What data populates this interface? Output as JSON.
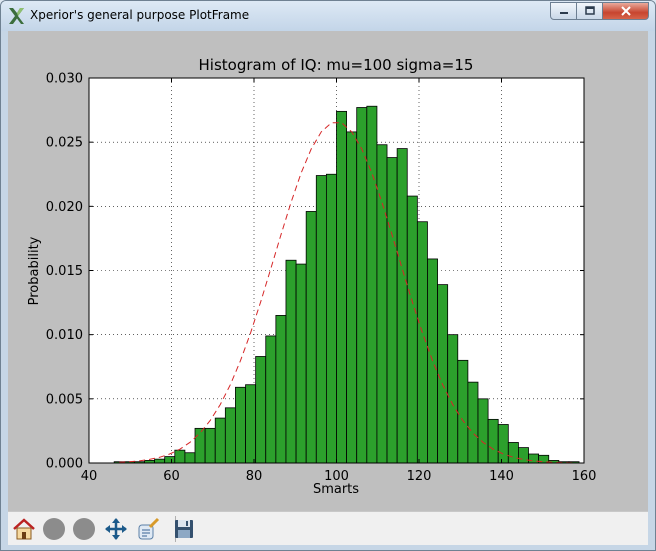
{
  "window": {
    "title": "Xperior's general purpose PlotFrame"
  },
  "toolbar": {
    "buttons": [
      {
        "name": "home",
        "icon": "home-icon"
      },
      {
        "name": "back",
        "icon": "back-circle-icon"
      },
      {
        "name": "forward",
        "icon": "forward-circle-icon"
      },
      {
        "name": "pan",
        "icon": "move-arrows-icon"
      },
      {
        "name": "configure",
        "icon": "configure-subplots-icon"
      },
      {
        "name": "save",
        "icon": "floppy-save-icon"
      }
    ]
  },
  "chart_data": {
    "type": "bar",
    "title": "Histogram of IQ: mu=100 sigma=15",
    "xlabel": "Smarts",
    "ylabel": "Probability",
    "xlim": [
      40,
      160
    ],
    "ylim": [
      0,
      0.03
    ],
    "xticks": [
      "40",
      "60",
      "80",
      "100",
      "120",
      "140",
      "160"
    ],
    "yticks": [
      "0.000",
      "0.005",
      "0.010",
      "0.015",
      "0.020",
      "0.025",
      "0.030"
    ],
    "grid": true,
    "bar_color": "#2ca02c",
    "fit_color": "#d62728",
    "bin_width": 2.45,
    "bins_left": [
      46.1,
      48.55,
      51.0,
      53.45,
      55.9,
      58.35,
      60.8,
      63.25,
      65.7,
      68.15,
      70.6,
      73.05,
      75.5,
      77.95,
      80.4,
      82.85,
      85.3,
      87.75,
      90.2,
      92.65,
      95.1,
      97.55,
      100.0,
      102.45,
      104.9,
      107.35,
      109.8,
      112.25,
      114.7,
      117.15,
      119.6,
      122.05,
      124.5,
      126.95,
      129.4,
      131.85,
      134.3,
      136.75,
      139.2,
      141.65,
      144.1,
      146.55,
      149.0,
      151.45,
      153.9,
      156.35
    ],
    "values": [
      0.0001,
      0.0001,
      0.0001,
      0.0002,
      0.0003,
      0.0005,
      0.001,
      0.0008,
      0.0027,
      0.0027,
      0.0035,
      0.0043,
      0.0059,
      0.0061,
      0.0083,
      0.0099,
      0.0115,
      0.0158,
      0.0155,
      0.0196,
      0.0224,
      0.0225,
      0.0274,
      0.0258,
      0.0277,
      0.0278,
      0.0248,
      0.0238,
      0.0245,
      0.0208,
      0.0188,
      0.0159,
      0.0139,
      0.01,
      0.008,
      0.0063,
      0.005,
      0.0034,
      0.003,
      0.0016,
      0.0012,
      0.0007,
      0.0006,
      0.0002,
      0.0001,
      0.0001
    ]
  }
}
